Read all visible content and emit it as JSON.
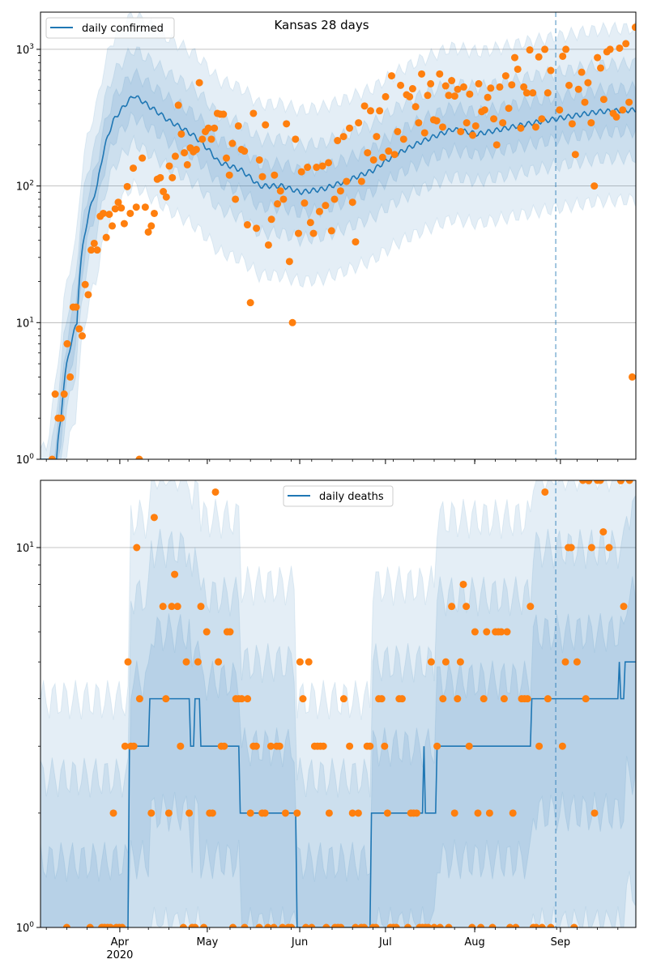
{
  "chart_data": [
    {
      "type": "line",
      "title": "Kansas 28 days",
      "start_date": "2020-03-05",
      "x_unit": "days since start_date",
      "xlim": [
        0,
        204
      ],
      "yscale": "log",
      "ylim": [
        1,
        1880
      ],
      "grid": "horizontal major",
      "legend": {
        "placement": "top-left",
        "entries": [
          "daily confirmed"
        ]
      },
      "yticks": [
        {
          "value": 1,
          "base": "10",
          "exp": "0"
        },
        {
          "value": 10,
          "base": "10",
          "exp": "1"
        },
        {
          "value": 100,
          "base": "10",
          "exp": "2"
        },
        {
          "value": 1000,
          "base": "10",
          "exp": "3"
        }
      ],
      "vline_day": 176.7,
      "series_color": "#1f77b4",
      "points_color": "#ff7f0e",
      "median": [
        [
          5.5,
          1
        ],
        [
          7,
          2
        ],
        [
          12.5,
          10
        ],
        [
          19.5,
          100
        ],
        [
          25,
          300
        ],
        [
          32,
          460
        ],
        [
          37.5,
          380
        ],
        [
          44,
          300
        ],
        [
          53,
          230
        ],
        [
          61,
          150
        ],
        [
          69,
          130
        ],
        [
          75,
          100
        ],
        [
          83,
          100
        ],
        [
          89,
          90
        ],
        [
          97,
          95
        ],
        [
          105.5,
          110
        ],
        [
          114,
          130
        ],
        [
          122,
          170
        ],
        [
          130.5,
          210
        ],
        [
          141.5,
          260
        ],
        [
          150,
          240
        ],
        [
          158,
          260
        ],
        [
          169,
          290
        ],
        [
          180.5,
          320
        ],
        [
          191.5,
          350
        ],
        [
          204,
          360
        ]
      ],
      "band_factors": [
        [
          0.22,
          4.0
        ],
        [
          0.45,
          2.2
        ],
        [
          0.7,
          1.45
        ]
      ],
      "points": [
        {
          "start_day": 4,
          "end_day": 175,
          "values": [
            1,
            3,
            2,
            2,
            3,
            7,
            4,
            13,
            13,
            9,
            8,
            19,
            16,
            34,
            38,
            34,
            60,
            63,
            42,
            62,
            51,
            68,
            76,
            69,
            53,
            99,
            63,
            135,
            70,
            1,
            160,
            70,
            46,
            51,
            63,
            112,
            115,
            91,
            83,
            140,
            115,
            165,
            390,
            240,
            175,
            143,
            190,
            178,
            185,
            570,
            220,
            250,
            265,
            220,
            265,
            340,
            335,
            335,
            160,
            120,
            205,
            80,
            275,
            185,
            180,
            52,
            14,
            340,
            49,
            155,
            117,
            280,
            37,
            57,
            120,
            74,
            92,
            80,
            285,
            28,
            10,
            220,
            45,
            127,
            75,
            137,
            54,
            45,
            137,
            65,
            140,
            72,
            148,
            47,
            80,
            215,
            92,
            230,
            108,
            265,
            76,
            39,
            290,
            108,
            385,
            175,
            355,
            155,
            230,
            355,
            162,
            450,
            180,
            640,
            170,
            250,
            545,
            220,
            465,
            450,
            515,
            380,
            290,
            660,
            245,
            460,
            560,
            305,
            300,
            660,
            270,
            540,
            460,
            590,
            455,
            510,
            250,
            530,
            290,
            470,
            235,
            275,
            560,
            350,
            360,
            445,
            520,
            310,
            200,
            530,
            290,
            640,
            370,
            550,
            870,
            715,
            265,
            530,
            480,
            990,
            480,
            270,
            880,
            310,
            1000,
            480,
            700
          ]
        },
        {
          "start_day": 178,
          "end_day": 204,
          "values": [
            360,
            890,
            1000,
            545,
            285,
            170,
            510,
            680,
            410,
            570,
            290,
            100,
            870,
            730,
            430,
            960,
            1000,
            340,
            320,
            1020,
            360,
            1100,
            410,
            4,
            1450
          ]
        }
      ]
    },
    {
      "type": "line",
      "title": "",
      "start_date": "2020-03-05",
      "xlim": [
        0,
        204
      ],
      "yscale": "log",
      "ylim": [
        1,
        15
      ],
      "grid": "horizontal major",
      "legend": {
        "placement": "top-center",
        "entries": [
          "daily deaths"
        ]
      },
      "yticks": [
        {
          "value": 1,
          "base": "10",
          "exp": "0"
        },
        {
          "value": 10,
          "base": "10",
          "exp": "1"
        }
      ],
      "xticks": [
        {
          "label": "Apr",
          "day": 27.2,
          "sub": "2020"
        },
        {
          "label": "May",
          "day": 57.2
        },
        {
          "label": "Jun",
          "day": 88.9
        },
        {
          "label": "Jul",
          "day": 118.3
        },
        {
          "label": "Aug",
          "day": 148.9
        },
        {
          "label": "Sep",
          "day": 178.3
        }
      ],
      "vline_day": 176.7,
      "series_color": "#1f77b4",
      "points_color": "#ff7f0e",
      "median": [
        [
          27.5,
          0
        ],
        [
          28,
          1
        ],
        [
          30,
          1
        ],
        [
          30.5,
          3
        ],
        [
          37,
          3
        ],
        [
          37.5,
          4
        ],
        [
          51,
          4
        ],
        [
          51.5,
          3
        ],
        [
          52.5,
          3
        ],
        [
          53,
          4
        ],
        [
          54.5,
          4
        ],
        [
          55,
          3
        ],
        [
          68,
          3
        ],
        [
          68.5,
          2
        ],
        [
          87.5,
          2
        ],
        [
          88,
          0
        ],
        [
          113,
          0
        ],
        [
          113.5,
          2
        ],
        [
          131,
          2
        ],
        [
          131.5,
          3
        ],
        [
          132,
          2
        ],
        [
          135.5,
          2
        ],
        [
          136,
          3
        ],
        [
          168,
          3
        ],
        [
          168.5,
          4
        ],
        [
          198,
          4
        ],
        [
          198.5,
          5
        ],
        [
          199,
          4
        ],
        [
          200,
          4
        ],
        [
          200.5,
          5
        ],
        [
          204,
          5
        ]
      ],
      "band_factors": [
        [
          0.1,
          4.0
        ],
        [
          0.25,
          2.5
        ],
        [
          0.5,
          1.5
        ]
      ],
      "points": [
        [
          9,
          1
        ],
        [
          17,
          1
        ],
        [
          21,
          1
        ],
        [
          22,
          1
        ],
        [
          23,
          1
        ],
        [
          24,
          1
        ],
        [
          25,
          2
        ],
        [
          26,
          1
        ],
        [
          27,
          1
        ],
        [
          28,
          1
        ],
        [
          29,
          3
        ],
        [
          30,
          5
        ],
        [
          31,
          3
        ],
        [
          32,
          3
        ],
        [
          33,
          10
        ],
        [
          34,
          4
        ],
        [
          38,
          2
        ],
        [
          39,
          12
        ],
        [
          42,
          7
        ],
        [
          43,
          4
        ],
        [
          44,
          2
        ],
        [
          45,
          7
        ],
        [
          46,
          8.5
        ],
        [
          47,
          7
        ],
        [
          48,
          3
        ],
        [
          49,
          1
        ],
        [
          50,
          5
        ],
        [
          51,
          2
        ],
        [
          52,
          1
        ],
        [
          53,
          1
        ],
        [
          54,
          5
        ],
        [
          55,
          7
        ],
        [
          56,
          1
        ],
        [
          57,
          6
        ],
        [
          58,
          2
        ],
        [
          59,
          2
        ],
        [
          60,
          14
        ],
        [
          61,
          5
        ],
        [
          62,
          3
        ],
        [
          63,
          3
        ],
        [
          64,
          6
        ],
        [
          65,
          6
        ],
        [
          66,
          1
        ],
        [
          67,
          4
        ],
        [
          68,
          4
        ],
        [
          69,
          4
        ],
        [
          70,
          1
        ],
        [
          71,
          4
        ],
        [
          72,
          2
        ],
        [
          73,
          3
        ],
        [
          74,
          3
        ],
        [
          75,
          1
        ],
        [
          76,
          2
        ],
        [
          77,
          2
        ],
        [
          78,
          1
        ],
        [
          79,
          3
        ],
        [
          80,
          1
        ],
        [
          81,
          3
        ],
        [
          82,
          3
        ],
        [
          83,
          1
        ],
        [
          84,
          2
        ],
        [
          85,
          1
        ],
        [
          86,
          1
        ],
        [
          88,
          2
        ],
        [
          89,
          5
        ],
        [
          90,
          4
        ],
        [
          91,
          1
        ],
        [
          92,
          5
        ],
        [
          93,
          1
        ],
        [
          94,
          3
        ],
        [
          95,
          3
        ],
        [
          96,
          3
        ],
        [
          97,
          3
        ],
        [
          98,
          1
        ],
        [
          99,
          2
        ],
        [
          101,
          1
        ],
        [
          102,
          1
        ],
        [
          103,
          1
        ],
        [
          104,
          4
        ],
        [
          106,
          3
        ],
        [
          107,
          2
        ],
        [
          108,
          1
        ],
        [
          109,
          2
        ],
        [
          110,
          1
        ],
        [
          111,
          1
        ],
        [
          112,
          3
        ],
        [
          113,
          3
        ],
        [
          114,
          1
        ],
        [
          115,
          1
        ],
        [
          116,
          4
        ],
        [
          117,
          4
        ],
        [
          118,
          3
        ],
        [
          119,
          2
        ],
        [
          120,
          1
        ],
        [
          121,
          1
        ],
        [
          122,
          1
        ],
        [
          123,
          4
        ],
        [
          124,
          4
        ],
        [
          126,
          1
        ],
        [
          127,
          2
        ],
        [
          128,
          2
        ],
        [
          129,
          2
        ],
        [
          130,
          1
        ],
        [
          131,
          1
        ],
        [
          132,
          1
        ],
        [
          133,
          1
        ],
        [
          134,
          5
        ],
        [
          135,
          1
        ],
        [
          136,
          3
        ],
        [
          137,
          1
        ],
        [
          138,
          4
        ],
        [
          139,
          5
        ],
        [
          140,
          1
        ],
        [
          141,
          7
        ],
        [
          142,
          2
        ],
        [
          143,
          4
        ],
        [
          144,
          5
        ],
        [
          145,
          8
        ],
        [
          146,
          7
        ],
        [
          147,
          3
        ],
        [
          148,
          1
        ],
        [
          149,
          6
        ],
        [
          150,
          2
        ],
        [
          151,
          1
        ],
        [
          152,
          4
        ],
        [
          153,
          6
        ],
        [
          154,
          2
        ],
        [
          155,
          1
        ],
        [
          156,
          6
        ],
        [
          157,
          6
        ],
        [
          158,
          6
        ],
        [
          159,
          4
        ],
        [
          160,
          6
        ],
        [
          161,
          1
        ],
        [
          162,
          2
        ],
        [
          163,
          1
        ],
        [
          165,
          4
        ],
        [
          166,
          4
        ],
        [
          167,
          4
        ],
        [
          168,
          7
        ],
        [
          169,
          1
        ],
        [
          170,
          1
        ],
        [
          171,
          3
        ],
        [
          172,
          1
        ],
        [
          173,
          14
        ],
        [
          174,
          4
        ],
        [
          175,
          1
        ],
        [
          179,
          3
        ],
        [
          180,
          5
        ],
        [
          181,
          10
        ],
        [
          182,
          10
        ],
        [
          183,
          1
        ],
        [
          184,
          5
        ],
        [
          186,
          16
        ],
        [
          187,
          4
        ],
        [
          188,
          15
        ],
        [
          189,
          10
        ],
        [
          190,
          2
        ],
        [
          191,
          16
        ],
        [
          192,
          18
        ],
        [
          193,
          11
        ],
        [
          195,
          10
        ],
        [
          199,
          15
        ],
        [
          200,
          7
        ],
        [
          202,
          16
        ]
      ]
    }
  ]
}
